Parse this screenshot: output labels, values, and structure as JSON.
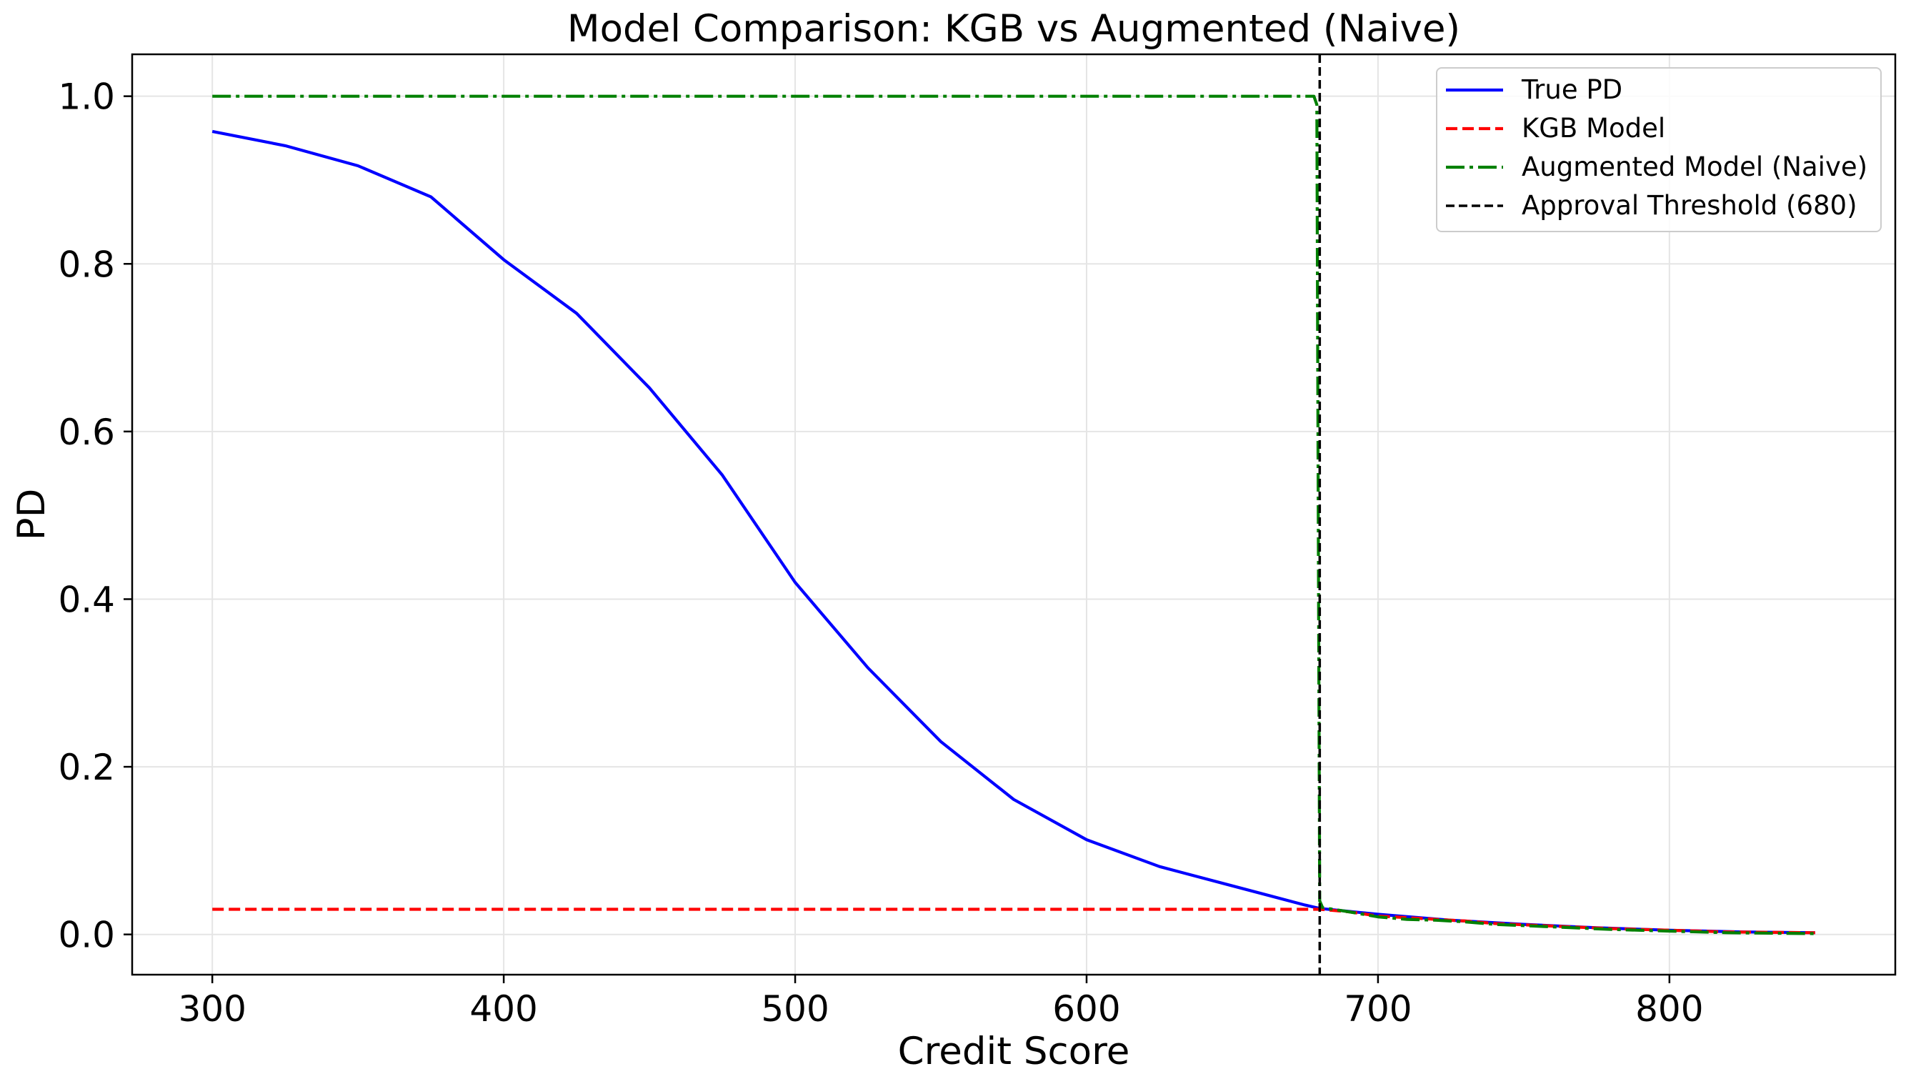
{
  "chart_data": {
    "type": "line",
    "title": "Model Comparison: KGB vs Augmented (Naive)",
    "xlabel": "Credit Score",
    "ylabel": "PD",
    "xlim": [
      272.5,
      877.5
    ],
    "ylim": [
      -0.048,
      1.05
    ],
    "xticks": [
      300,
      400,
      500,
      600,
      700,
      800
    ],
    "yticks": [
      0.0,
      0.2,
      0.4,
      0.6,
      0.8,
      1.0
    ],
    "xtick_labels": [
      "300",
      "400",
      "500",
      "600",
      "700",
      "800"
    ],
    "ytick_labels": [
      "0.0",
      "0.2",
      "0.4",
      "0.6",
      "0.8",
      "1.0"
    ],
    "grid": true,
    "legend_position": "upper right",
    "series": [
      {
        "name": "True PD",
        "color": "#0000ff",
        "style": "solid",
        "x": [
          300,
          325,
          350,
          375,
          400,
          425,
          450,
          475,
          500,
          525,
          550,
          575,
          600,
          625,
          650,
          675,
          680,
          700,
          725,
          750,
          775,
          800,
          825,
          850
        ],
        "y": [
          0.958,
          0.941,
          0.917,
          0.88,
          0.805,
          0.741,
          0.652,
          0.548,
          0.42,
          0.318,
          0.23,
          0.161,
          0.113,
          0.081,
          0.058,
          0.035,
          0.031,
          0.024,
          0.017,
          0.012,
          0.008,
          0.005,
          0.003,
          0.002
        ]
      },
      {
        "name": "KGB Model",
        "color": "#ff0000",
        "style": "dashed",
        "x": [
          300,
          400,
          500,
          600,
          680,
          690,
          700,
          710,
          720,
          730,
          740,
          760,
          780,
          800,
          820,
          850
        ],
        "y": [
          0.03,
          0.03,
          0.03,
          0.03,
          0.03,
          0.027,
          0.022,
          0.02,
          0.018,
          0.016,
          0.013,
          0.01,
          0.007,
          0.005,
          0.003,
          0.002
        ]
      },
      {
        "name": "Augmented Model (Naive)",
        "color": "#008000",
        "style": "dashdot",
        "x": [
          300,
          400,
          500,
          600,
          678,
          679,
          679.5,
          680,
          681,
          690,
          700,
          710,
          720,
          730,
          740,
          760,
          780,
          800,
          820,
          850
        ],
        "y": [
          1.0,
          1.0,
          1.0,
          1.0,
          1.0,
          0.99,
          0.5,
          0.04,
          0.032,
          0.027,
          0.021,
          0.018,
          0.017,
          0.015,
          0.012,
          0.009,
          0.006,
          0.004,
          0.002,
          0.001
        ]
      }
    ],
    "annotations": [
      {
        "name": "Approval Threshold (680)",
        "type": "vline",
        "x": 680,
        "color": "#000000",
        "style": "dashed"
      }
    ]
  }
}
